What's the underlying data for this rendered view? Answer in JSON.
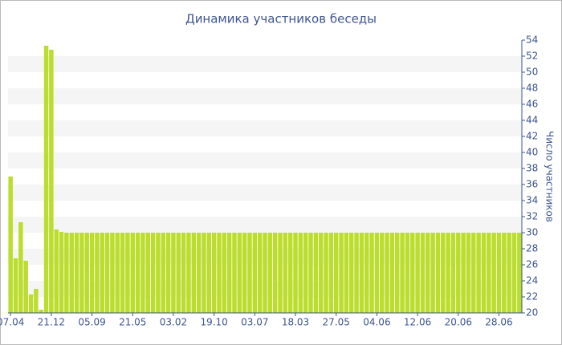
{
  "chart_data": {
    "type": "bar",
    "title": "Динамика участников беседы",
    "y_axis_label": "Число участников",
    "categories": [
      "07.04",
      null,
      null,
      null,
      null,
      null,
      null,
      null,
      "21.12",
      null,
      null,
      null,
      null,
      null,
      null,
      null,
      "05.09",
      null,
      null,
      null,
      null,
      null,
      null,
      null,
      "21.05",
      null,
      null,
      null,
      null,
      null,
      null,
      null,
      "03.02",
      null,
      null,
      null,
      null,
      null,
      null,
      null,
      "19.10",
      null,
      null,
      null,
      null,
      null,
      null,
      null,
      "03.07",
      null,
      null,
      null,
      null,
      null,
      null,
      null,
      "18.03",
      null,
      null,
      null,
      null,
      null,
      null,
      null,
      "27.05",
      null,
      null,
      null,
      null,
      null,
      null,
      null,
      "04.06",
      null,
      null,
      null,
      null,
      null,
      null,
      null,
      "12.06",
      null,
      null,
      null,
      null,
      null,
      null,
      null,
      "20.06",
      null,
      null,
      null,
      null,
      null,
      null,
      null,
      "28.06",
      null,
      null,
      null,
      null
    ],
    "values": [
      37,
      26.8,
      31.3,
      26.5,
      22.3,
      23,
      20.4,
      53.3,
      52.8,
      30.4,
      30.1,
      30,
      30,
      30,
      30,
      30,
      30,
      30,
      30,
      30,
      30,
      30,
      30,
      30,
      30,
      30,
      30,
      30,
      30,
      30,
      30,
      30,
      30,
      30,
      30,
      30,
      30,
      30,
      30,
      30,
      30,
      30,
      30,
      30,
      30,
      30,
      30,
      30,
      30,
      30,
      30,
      30,
      30,
      30,
      30,
      30,
      30,
      30,
      30,
      30,
      30,
      30,
      30,
      30,
      30,
      30,
      30,
      30,
      30,
      30,
      30,
      30,
      30,
      30,
      30,
      30,
      30,
      30,
      30,
      30,
      30,
      30,
      30,
      30,
      30,
      30,
      30,
      30,
      30,
      30,
      30,
      30,
      30,
      30,
      30,
      30,
      30,
      30,
      30,
      30,
      30
    ],
    "color": "#bbdd2e",
    "ylim": [
      20,
      54
    ],
    "yticks": [
      20,
      22,
      24,
      26,
      28,
      30,
      32,
      34,
      36,
      38,
      40,
      42,
      44,
      46,
      48,
      50,
      52,
      54
    ],
    "grid": "bands",
    "y_axis_side": "right"
  }
}
